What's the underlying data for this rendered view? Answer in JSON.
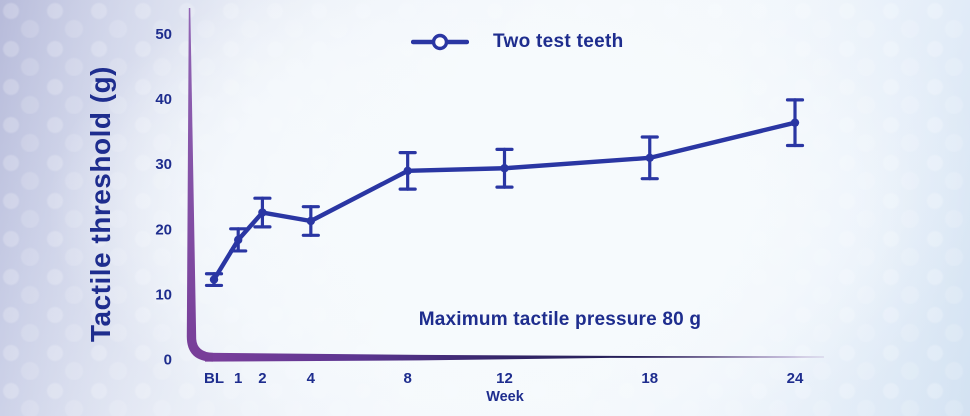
{
  "colors": {
    "navy_text": "#1e2d8e",
    "line_blue": "#2a36a3",
    "axis_purple": "#7b3f9b",
    "axis_purple_light": "#9165b4",
    "axis_navy": "#262058"
  },
  "legend": {
    "label": "Two test teeth"
  },
  "chart_data": {
    "type": "line",
    "title": "",
    "ylabel": "Tactile threshold (g)",
    "xlabel": "Week",
    "ylim": [
      0,
      50
    ],
    "yticks": [
      0,
      10,
      20,
      30,
      40,
      50
    ],
    "x_categories": [
      "BL",
      "1",
      "2",
      "4",
      "8",
      "12",
      "18",
      "24"
    ],
    "x_week_positions": [
      0,
      1,
      2,
      4,
      8,
      12,
      18,
      24
    ],
    "grid": false,
    "legend_position": "top-center",
    "annotation": "Maximum tactile pressure 80 g",
    "series": [
      {
        "name": "Two test teeth",
        "marker": "circle",
        "values": [
          12.2,
          18.3,
          22.5,
          21.2,
          28.9,
          29.3,
          30.9,
          36.3
        ],
        "error_bars": [
          0.9,
          1.7,
          2.2,
          2.2,
          2.8,
          2.9,
          3.2,
          3.5
        ]
      }
    ]
  }
}
